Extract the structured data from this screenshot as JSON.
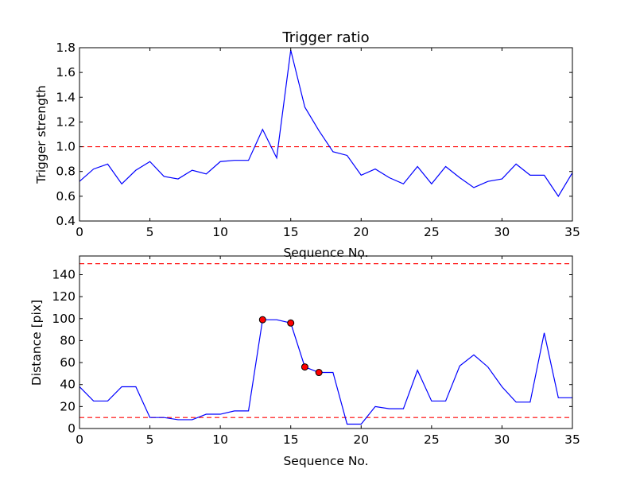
{
  "colors": {
    "line": "#0000ff",
    "threshold": "#ff0000",
    "marker_fill": "#ff0000",
    "marker_edge": "#000000",
    "axes": "#000000",
    "background": "#ffffff"
  },
  "chart_data": [
    {
      "type": "line",
      "title": "Trigger ratio",
      "xlabel": "Sequence No.",
      "ylabel": "Trigger strength",
      "xlim": [
        0,
        35
      ],
      "ylim": [
        0.4,
        1.8
      ],
      "xticks": [
        0,
        5,
        10,
        15,
        20,
        25,
        30,
        35
      ],
      "yticks": [
        0.4,
        0.6,
        0.8,
        1.0,
        1.2,
        1.4,
        1.6,
        1.8
      ],
      "ytick_labels": [
        "0.4",
        "0.6",
        "0.8",
        "1.0",
        "1.2",
        "1.4",
        "1.6",
        "1.8"
      ],
      "grid": false,
      "series": [
        {
          "x": [
            0,
            1,
            2,
            3,
            4,
            5,
            6,
            7,
            8,
            9,
            10,
            11,
            12,
            13,
            14,
            15,
            16,
            17,
            18,
            19,
            20,
            21,
            22,
            23,
            24,
            25,
            26,
            27,
            28,
            29,
            30,
            31,
            32,
            33,
            34,
            35
          ],
          "values": [
            0.72,
            0.82,
            0.86,
            0.7,
            0.81,
            0.88,
            0.76,
            0.74,
            0.81,
            0.78,
            0.88,
            0.89,
            0.89,
            1.14,
            0.91,
            1.78,
            1.32,
            1.13,
            0.96,
            0.93,
            0.77,
            0.82,
            0.75,
            0.7,
            0.84,
            0.7,
            0.84,
            0.75,
            0.67,
            0.72,
            0.74,
            0.86,
            0.77,
            0.77,
            0.6,
            0.79
          ],
          "color": "#0000ff"
        }
      ],
      "thresholds": [
        {
          "value": 1.0,
          "style": "dashed",
          "color": "#ff0000"
        }
      ]
    },
    {
      "type": "line",
      "title": "",
      "xlabel": "Sequence No.",
      "ylabel": "Distance [pix]",
      "xlim": [
        0,
        35
      ],
      "ylim": [
        0,
        157
      ],
      "xticks": [
        0,
        5,
        10,
        15,
        20,
        25,
        30,
        35
      ],
      "yticks": [
        0,
        20,
        40,
        60,
        80,
        100,
        120,
        140
      ],
      "ytick_labels": [
        "0",
        "20",
        "40",
        "60",
        "80",
        "100",
        "120",
        "140"
      ],
      "grid": false,
      "series": [
        {
          "x": [
            0,
            1,
            2,
            3,
            4,
            5,
            6,
            7,
            8,
            9,
            10,
            11,
            12,
            13,
            14,
            15,
            16,
            17,
            18,
            19,
            20,
            21,
            22,
            23,
            24,
            25,
            26,
            27,
            28,
            29,
            30,
            31,
            32,
            33,
            34,
            35
          ],
          "values": [
            38,
            25,
            25,
            38,
            38,
            10,
            10,
            8,
            8,
            13,
            13,
            16,
            16,
            99,
            99,
            96,
            56,
            51,
            51,
            4,
            4,
            20,
            18,
            18,
            53,
            25,
            25,
            57,
            67,
            56,
            38,
            24,
            24,
            87,
            28,
            28
          ],
          "color": "#0000ff"
        }
      ],
      "highlighted_points": [
        {
          "x": 13,
          "y": 99
        },
        {
          "x": 15,
          "y": 96
        },
        {
          "x": 16,
          "y": 56
        },
        {
          "x": 17,
          "y": 51
        }
      ],
      "thresholds": [
        {
          "value": 150,
          "style": "dashed",
          "color": "#ff0000"
        },
        {
          "value": 10,
          "style": "dashed",
          "color": "#ff0000"
        }
      ]
    }
  ]
}
